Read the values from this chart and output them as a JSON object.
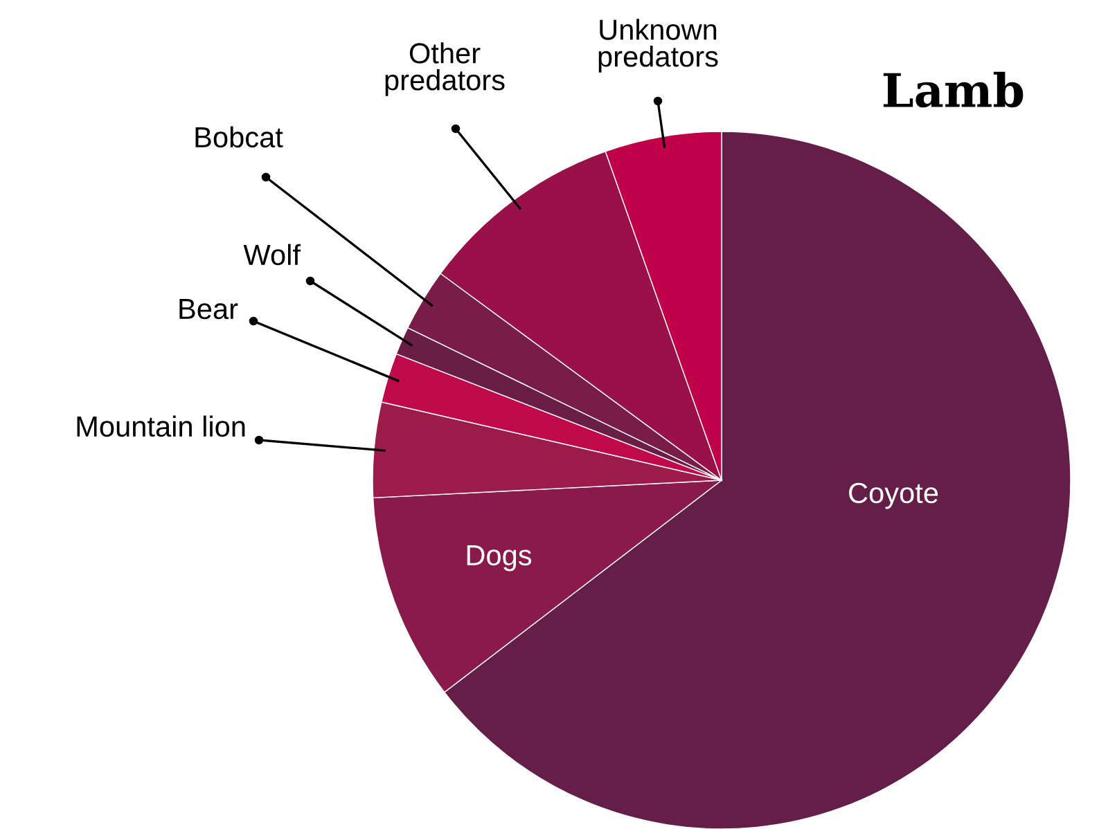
{
  "chart_data": {
    "type": "pie",
    "title": "Lamb",
    "categories": [
      "Coyote",
      "Dogs",
      "Mountain lion",
      "Bear",
      "Wolf",
      "Bobcat",
      "Other predators",
      "Unknown predators"
    ],
    "values": [
      64.6,
      9.6,
      4.4,
      2.3,
      1.3,
      2.9,
      9.5,
      5.4
    ],
    "colors": [
      "#641e48",
      "#8a1a4b",
      "#9b1b4c",
      "#c0094a",
      "#6a1d45",
      "#7a1c48",
      "#9a1149",
      "#c00048"
    ]
  }
}
